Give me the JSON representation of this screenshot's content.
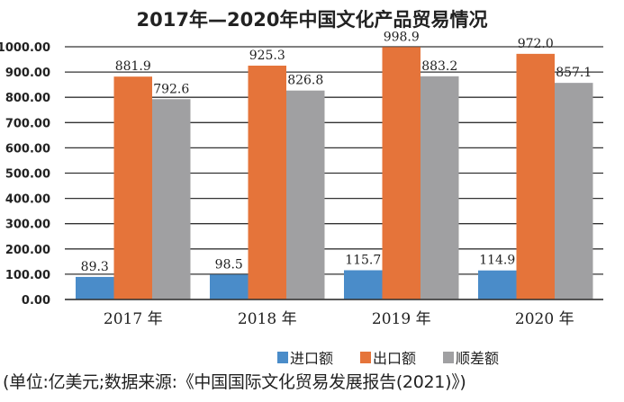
{
  "chart_data": {
    "type": "bar",
    "title": "2017年—2020年中国文化产品贸易情况",
    "categories": [
      "2017 年",
      "2018 年",
      "2019 年",
      "2020 年"
    ],
    "series": [
      {
        "name": "进口额",
        "color": "#4a8cc9",
        "values": [
          89.3,
          98.5,
          115.7,
          114.9
        ],
        "labels": [
          "89.3",
          "98.5",
          "115.7",
          "114.9"
        ]
      },
      {
        "name": "出口额",
        "color": "#e5743a",
        "values": [
          881.9,
          925.3,
          998.9,
          972.0
        ],
        "labels": [
          "881.9",
          "925.3",
          "998.9",
          "972.0"
        ]
      },
      {
        "name": "顺差额",
        "color": "#a0a0a2",
        "values": [
          792.6,
          826.8,
          883.2,
          857.1
        ],
        "labels": [
          "792.6",
          "826.8",
          "883.2",
          "857.1"
        ]
      }
    ],
    "yticks": [
      "0.00",
      "100.00",
      "200.00",
      "300.00",
      "400.00",
      "500.00",
      "600.00",
      "700.00",
      "800.00",
      "900.00",
      "1000.00"
    ],
    "ylim": [
      0,
      1000
    ],
    "grid": true,
    "legend": "bottom-right",
    "note": "(单位:亿美元;数据来源:《中国国际文化贸易发展报告(2021)》)"
  }
}
